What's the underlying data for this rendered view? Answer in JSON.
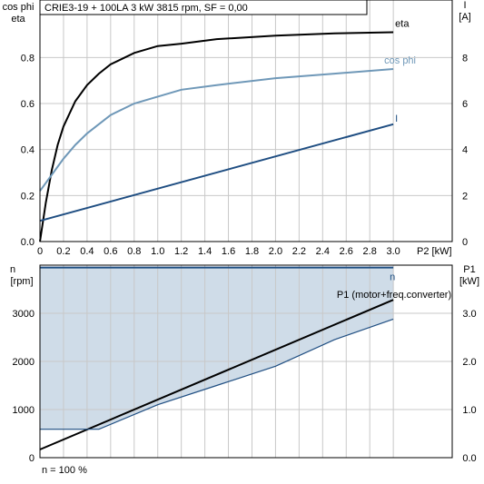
{
  "chart_data": [
    {
      "type": "line",
      "title": "CRIE3-19 + 100LA    3 kW    3815 rpm, SF = 0,00",
      "xlabel": "P2 [kW]",
      "ylabel_left": "cos phi\neta",
      "ylabel_right": "I\n[A]",
      "xlim": [
        0,
        3.5
      ],
      "ylim_left": [
        0,
        1.05
      ],
      "ylim_right": [
        0,
        10.5
      ],
      "x_ticks": [
        "0",
        "0.2",
        "0.4",
        "0.6",
        "0.8",
        "1.0",
        "1.2",
        "1.4",
        "1.6",
        "1.8",
        "2.0",
        "2.2",
        "2.4",
        "2.6",
        "2.8",
        "3.0"
      ],
      "y_ticks_left": [
        "0.0",
        "0.2",
        "0.4",
        "0.6",
        "0.8"
      ],
      "y_ticks_right": [
        "0",
        "2",
        "4",
        "6",
        "8"
      ],
      "grid": true,
      "series": [
        {
          "name": "eta",
          "axis": "left",
          "color": "#000000",
          "x": [
            0,
            0.05,
            0.1,
            0.15,
            0.2,
            0.3,
            0.4,
            0.5,
            0.6,
            0.8,
            1.0,
            1.2,
            1.5,
            2.0,
            2.5,
            3.0
          ],
          "y": [
            0,
            0.17,
            0.31,
            0.42,
            0.5,
            0.61,
            0.68,
            0.73,
            0.77,
            0.82,
            0.85,
            0.86,
            0.88,
            0.895,
            0.905,
            0.91
          ]
        },
        {
          "name": "cos phi",
          "axis": "left",
          "color": "#6f98b8",
          "x": [
            0,
            0.1,
            0.2,
            0.3,
            0.4,
            0.6,
            0.8,
            1.0,
            1.2,
            1.5,
            2.0,
            2.5,
            3.0
          ],
          "y": [
            0.22,
            0.29,
            0.36,
            0.42,
            0.47,
            0.55,
            0.6,
            0.63,
            0.66,
            0.68,
            0.71,
            0.73,
            0.75
          ]
        },
        {
          "name": "I",
          "axis": "right",
          "color": "#1f4e82",
          "x": [
            0,
            3.0
          ],
          "y": [
            0.9,
            5.1
          ]
        }
      ]
    },
    {
      "type": "area",
      "xlim": [
        0,
        3.5
      ],
      "ylabel_left": "n\n[rpm]",
      "ylabel_right": "P1\n[kW]",
      "ylim_left": [
        0,
        4000
      ],
      "ylim_right": [
        0,
        4.0
      ],
      "y_ticks_left": [
        "0",
        "1000",
        "2000",
        "3000"
      ],
      "y_ticks_right": [
        "0.0",
        "1.0",
        "2.0",
        "3.0"
      ],
      "grid": true,
      "footnote": "n = 100 %",
      "series": [
        {
          "name": "n",
          "axis": "left",
          "color": "#1f4e82",
          "fill": "#cfdce8",
          "x": [
            0,
            3.0
          ],
          "y": [
            3950,
            3950
          ]
        },
        {
          "name": "P1 (motor+freq.converter)",
          "axis": "right",
          "color": "#000000",
          "x": [
            0,
            3.0
          ],
          "y": [
            0.17,
            3.28
          ]
        },
        {
          "name": "",
          "axis": "left",
          "color": "#1f4e82",
          "x": [
            0,
            0.5,
            1.0,
            1.5,
            2.0,
            2.5,
            3.0
          ],
          "y": [
            590,
            590,
            1100,
            1500,
            1900,
            2450,
            2880
          ]
        }
      ]
    }
  ]
}
